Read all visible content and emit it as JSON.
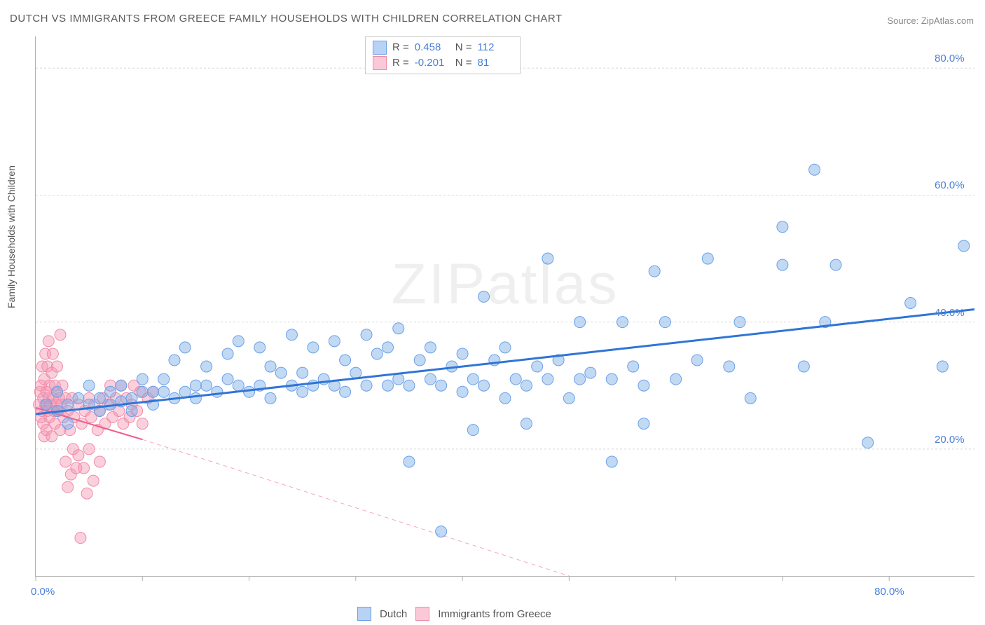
{
  "title": "DUTCH VS IMMIGRANTS FROM GREECE FAMILY HOUSEHOLDS WITH CHILDREN CORRELATION CHART",
  "source": "Source: ZipAtlas.com",
  "watermark": "ZIPatlas",
  "y_axis_label": "Family Households with Children",
  "x_axis": {
    "min_label": "0.0%",
    "max_label": "80.0%",
    "xlim": [
      0,
      88
    ],
    "tick_positions": [
      0,
      10,
      20,
      30,
      40,
      50,
      60,
      70,
      80
    ]
  },
  "y_axis": {
    "ylim": [
      0,
      85
    ],
    "tick_labels": [
      "20.0%",
      "40.0%",
      "60.0%",
      "80.0%"
    ],
    "tick_positions": [
      20,
      40,
      60,
      80
    ]
  },
  "grid_color": "#d8d8d8",
  "axis_color": "#b0b0b0",
  "background_color": "#ffffff",
  "stats": [
    {
      "R": "0.458",
      "N": "112",
      "color_fill": "#b7d2f4",
      "color_stroke": "#6aa0e8"
    },
    {
      "R": "-0.201",
      "N": "81",
      "color_fill": "#fac9d7",
      "color_stroke": "#f18aa8"
    }
  ],
  "legend": [
    {
      "label": "Dutch",
      "fill": "#b7d2f4",
      "stroke": "#6aa0e8"
    },
    {
      "label": "Immigrants from Greece",
      "fill": "#fac9d7",
      "stroke": "#f18aa8"
    }
  ],
  "series": {
    "dutch": {
      "color_fill": "rgba(120,170,230,0.45)",
      "color_stroke": "#6aa0e8",
      "marker_radius": 8,
      "trend": {
        "x1": 0,
        "y1": 25.5,
        "x2": 88,
        "y2": 42,
        "stroke": "#3b8ff_placeholder"
      },
      "trend_line": {
        "x1": 0,
        "y1": 25.5,
        "x2": 88,
        "y2": 42,
        "stroke": "#2f75d6",
        "width": 3
      },
      "points": [
        [
          1,
          27
        ],
        [
          2,
          26
        ],
        [
          2,
          29
        ],
        [
          3,
          27
        ],
        [
          3,
          24
        ],
        [
          4,
          28
        ],
        [
          5,
          27
        ],
        [
          5,
          30
        ],
        [
          6,
          28
        ],
        [
          6,
          26
        ],
        [
          7,
          29
        ],
        [
          7,
          27
        ],
        [
          8,
          27.5
        ],
        [
          8,
          30
        ],
        [
          9,
          28
        ],
        [
          9,
          26
        ],
        [
          10,
          29
        ],
        [
          10,
          31
        ],
        [
          11,
          27
        ],
        [
          11,
          29
        ],
        [
          12,
          29
        ],
        [
          12,
          31
        ],
        [
          13,
          28
        ],
        [
          13,
          34
        ],
        [
          14,
          29
        ],
        [
          14,
          36
        ],
        [
          15,
          30
        ],
        [
          15,
          28
        ],
        [
          16,
          33
        ],
        [
          16,
          30
        ],
        [
          17,
          29
        ],
        [
          18,
          35
        ],
        [
          18,
          31
        ],
        [
          19,
          30
        ],
        [
          19,
          37
        ],
        [
          20,
          29
        ],
        [
          21,
          30
        ],
        [
          21,
          36
        ],
        [
          22,
          33
        ],
        [
          22,
          28
        ],
        [
          23,
          32
        ],
        [
          24,
          30
        ],
        [
          24,
          38
        ],
        [
          25,
          32
        ],
        [
          25,
          29
        ],
        [
          26,
          30
        ],
        [
          26,
          36
        ],
        [
          27,
          31
        ],
        [
          28,
          30
        ],
        [
          28,
          37
        ],
        [
          29,
          34
        ],
        [
          29,
          29
        ],
        [
          30,
          32
        ],
        [
          31,
          30
        ],
        [
          31,
          38
        ],
        [
          32,
          35
        ],
        [
          33,
          30
        ],
        [
          33,
          36
        ],
        [
          34,
          31
        ],
        [
          34,
          39
        ],
        [
          35,
          30
        ],
        [
          35,
          18
        ],
        [
          36,
          34
        ],
        [
          37,
          31
        ],
        [
          37,
          36
        ],
        [
          38,
          30
        ],
        [
          38,
          7
        ],
        [
          39,
          33
        ],
        [
          40,
          29
        ],
        [
          40,
          35
        ],
        [
          41,
          31
        ],
        [
          41,
          23
        ],
        [
          42,
          30
        ],
        [
          42,
          44
        ],
        [
          43,
          34
        ],
        [
          44,
          28
        ],
        [
          44,
          36
        ],
        [
          45,
          31
        ],
        [
          46,
          30
        ],
        [
          46,
          24
        ],
        [
          47,
          33
        ],
        [
          48,
          31
        ],
        [
          48,
          50
        ],
        [
          49,
          34
        ],
        [
          50,
          28
        ],
        [
          51,
          31
        ],
        [
          51,
          40
        ],
        [
          52,
          32
        ],
        [
          54,
          18
        ],
        [
          54,
          31
        ],
        [
          55,
          40
        ],
        [
          56,
          33
        ],
        [
          57,
          24
        ],
        [
          57,
          30
        ],
        [
          58,
          48
        ],
        [
          59,
          40
        ],
        [
          60,
          31
        ],
        [
          62,
          34
        ],
        [
          63,
          50
        ],
        [
          65,
          33
        ],
        [
          66,
          40
        ],
        [
          67,
          28
        ],
        [
          70,
          49
        ],
        [
          70,
          55
        ],
        [
          72,
          33
        ],
        [
          73,
          64
        ],
        [
          74,
          40
        ],
        [
          75,
          49
        ],
        [
          78,
          21
        ],
        [
          82,
          43
        ],
        [
          85,
          33
        ],
        [
          87,
          52
        ]
      ]
    },
    "greece": {
      "color_fill": "rgba(245,150,180,0.45)",
      "color_stroke": "#f18aa8",
      "marker_radius": 8,
      "trend_solid": {
        "x1": 0,
        "y1": 26.5,
        "x2": 10,
        "y2": 21.5,
        "stroke": "#ed5f8a",
        "width": 2
      },
      "trend_dashed": {
        "x1": 10,
        "y1": 21.5,
        "x2": 50,
        "y2": 0,
        "stroke": "#f5aabf",
        "width": 1,
        "dash": "6,5"
      },
      "points": [
        [
          0.3,
          27
        ],
        [
          0.4,
          29
        ],
        [
          0.5,
          25
        ],
        [
          0.5,
          30
        ],
        [
          0.6,
          26
        ],
        [
          0.6,
          33
        ],
        [
          0.7,
          28
        ],
        [
          0.7,
          24
        ],
        [
          0.8,
          22
        ],
        [
          0.8,
          31
        ],
        [
          0.9,
          27
        ],
        [
          0.9,
          35
        ],
        [
          1.0,
          29
        ],
        [
          1.0,
          23
        ],
        [
          1.1,
          26
        ],
        [
          1.1,
          33
        ],
        [
          1.2,
          28
        ],
        [
          1.2,
          37
        ],
        [
          1.3,
          25
        ],
        [
          1.3,
          30
        ],
        [
          1.4,
          27
        ],
        [
          1.5,
          32
        ],
        [
          1.5,
          22
        ],
        [
          1.6,
          28
        ],
        [
          1.6,
          35
        ],
        [
          1.7,
          26
        ],
        [
          1.8,
          30
        ],
        [
          1.8,
          24
        ],
        [
          1.9,
          27
        ],
        [
          2.0,
          29
        ],
        [
          2.0,
          33
        ],
        [
          2.1,
          26
        ],
        [
          2.2,
          28
        ],
        [
          2.3,
          38
        ],
        [
          2.3,
          23
        ],
        [
          2.4,
          27
        ],
        [
          2.5,
          30
        ],
        [
          2.6,
          25
        ],
        [
          2.8,
          28
        ],
        [
          2.8,
          18
        ],
        [
          3.0,
          26
        ],
        [
          3.0,
          14
        ],
        [
          3.2,
          23
        ],
        [
          3.3,
          16
        ],
        [
          3.4,
          28
        ],
        [
          3.5,
          20
        ],
        [
          3.6,
          25
        ],
        [
          3.8,
          17
        ],
        [
          4.0,
          27
        ],
        [
          4.0,
          19
        ],
        [
          4.2,
          6
        ],
        [
          4.3,
          24
        ],
        [
          4.5,
          17
        ],
        [
          4.6,
          26
        ],
        [
          4.8,
          13
        ],
        [
          5.0,
          28
        ],
        [
          5.0,
          20
        ],
        [
          5.2,
          25
        ],
        [
          5.4,
          15
        ],
        [
          5.5,
          27
        ],
        [
          5.8,
          23
        ],
        [
          6.0,
          26
        ],
        [
          6.0,
          18
        ],
        [
          6.3,
          28
        ],
        [
          6.5,
          24
        ],
        [
          6.8,
          27
        ],
        [
          7.0,
          30
        ],
        [
          7.2,
          25
        ],
        [
          7.5,
          28
        ],
        [
          7.8,
          26
        ],
        [
          8.0,
          30
        ],
        [
          8.2,
          24
        ],
        [
          8.5,
          28
        ],
        [
          8.8,
          25
        ],
        [
          9.0,
          27
        ],
        [
          9.2,
          30
        ],
        [
          9.5,
          26
        ],
        [
          9.8,
          29
        ],
        [
          10.0,
          24
        ],
        [
          10.5,
          28
        ],
        [
          11.0,
          29
        ]
      ]
    }
  }
}
